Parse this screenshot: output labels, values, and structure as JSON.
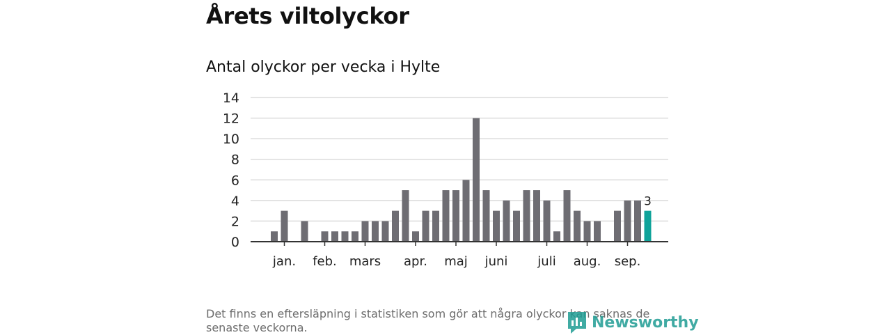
{
  "header": {
    "title": "Årets viltolyckor",
    "subtitle": "Antal olyckor per vecka i Hylte"
  },
  "footer": {
    "note": "Det finns en eftersläpning i statistiken som gör att några olyckor kan saknas de senaste veckorna.",
    "brand": "Newsworthy"
  },
  "chart_data": {
    "type": "bar",
    "title": "Antal olyckor per vecka i Hylte",
    "xlabel": "",
    "ylabel": "",
    "ylim": [
      0,
      14
    ],
    "yticks": [
      0,
      2,
      4,
      6,
      8,
      10,
      12,
      14
    ],
    "grid": true,
    "weeks": [
      1,
      2,
      3,
      4,
      5,
      6,
      7,
      8,
      9,
      10,
      11,
      12,
      13,
      14,
      15,
      16,
      17,
      18,
      19,
      20,
      21,
      22,
      23,
      24,
      25,
      26,
      27,
      28,
      29,
      30,
      31,
      32,
      33,
      34,
      35,
      36,
      37,
      38,
      39
    ],
    "values": [
      0,
      1,
      3,
      0,
      2,
      0,
      1,
      1,
      1,
      1,
      2,
      2,
      2,
      3,
      5,
      1,
      3,
      3,
      5,
      5,
      6,
      12,
      5,
      3,
      4,
      3,
      5,
      5,
      4,
      1,
      5,
      3,
      2,
      2,
      0,
      3,
      4,
      4,
      3
    ],
    "highlight": {
      "week": 39,
      "value": 3,
      "label": "3"
    },
    "month_labels": [
      {
        "label": "jan.",
        "week": 3
      },
      {
        "label": "feb.",
        "week": 7
      },
      {
        "label": "mars",
        "week": 11
      },
      {
        "label": "apr.",
        "week": 16
      },
      {
        "label": "maj",
        "week": 20
      },
      {
        "label": "juni",
        "week": 24
      },
      {
        "label": "juli",
        "week": 29
      },
      {
        "label": "aug.",
        "week": 33
      },
      {
        "label": "sep.",
        "week": 37
      }
    ],
    "colors": {
      "bar": "#6e6d73",
      "highlight": "#10a39a",
      "grid": "#dcdcdc",
      "axis": "#333333"
    }
  }
}
